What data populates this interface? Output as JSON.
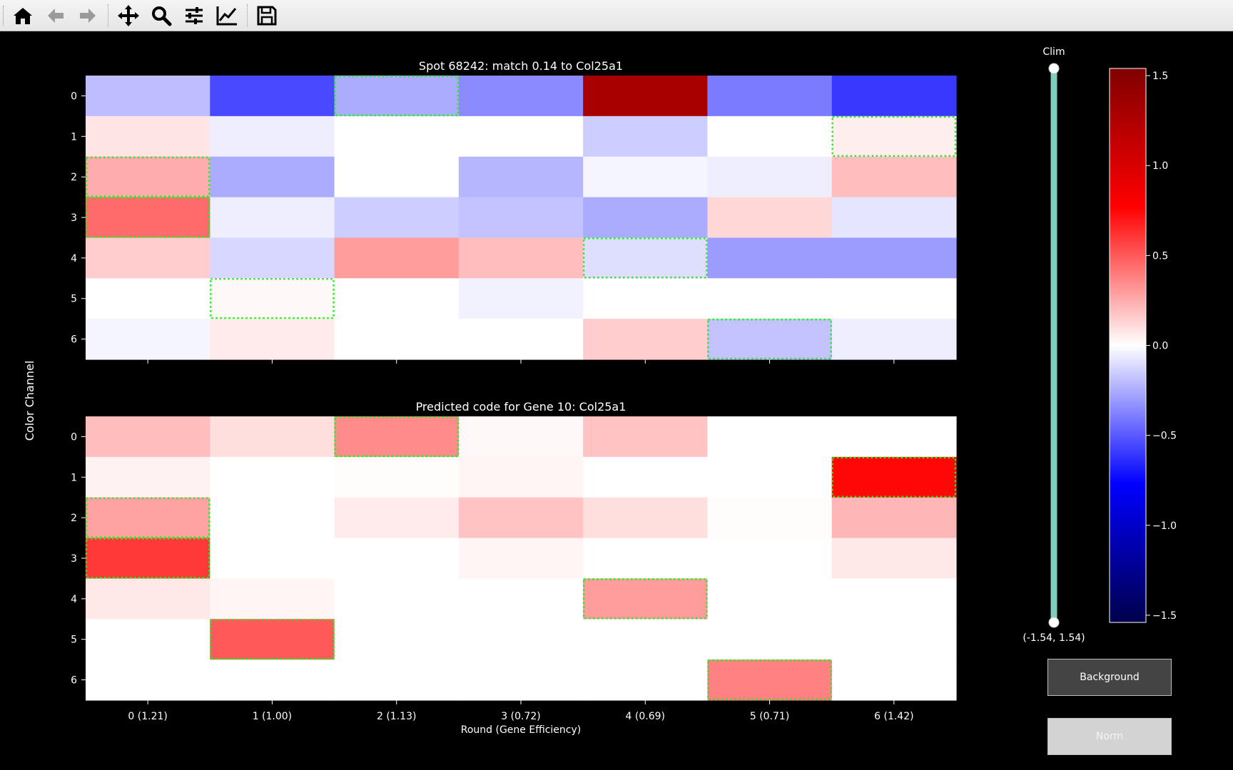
{
  "toolbar": {
    "buttons": [
      {
        "name": "home-icon",
        "label": "Home"
      },
      {
        "name": "back-icon",
        "label": "Back"
      },
      {
        "name": "forward-icon",
        "label": "Forward"
      },
      {
        "name": "pan-icon",
        "label": "Pan"
      },
      {
        "name": "zoom-icon",
        "label": "Zoom"
      },
      {
        "name": "configure-subplots-icon",
        "label": "Configure subplots"
      },
      {
        "name": "edit-axis-icon",
        "label": "Edit axis"
      },
      {
        "name": "save-icon",
        "label": "Save"
      }
    ]
  },
  "chart_data": [
    {
      "type": "heatmap",
      "title": "Spot 68242: match 0.14 to Col25a1",
      "ylabel": "Color Channel",
      "y_categories": [
        "0",
        "1",
        "2",
        "3",
        "4",
        "5",
        "6"
      ],
      "x_categories": [
        "0 (1.21)",
        "1 (1.00)",
        "2 (1.13)",
        "3 (0.72)",
        "4 (0.69)",
        "5 (0.71)",
        "6 (1.42)"
      ],
      "colormap": "seismic",
      "values": [
        [
          -0.2,
          -0.55,
          -0.25,
          -0.35,
          1.3,
          -0.4,
          -0.6
        ],
        [
          0.08,
          -0.05,
          0.0,
          0.0,
          -0.15,
          0.0,
          0.05
        ],
        [
          0.25,
          -0.25,
          0.0,
          -0.22,
          -0.03,
          -0.05,
          0.2
        ],
        [
          0.45,
          -0.05,
          -0.15,
          -0.18,
          -0.25,
          0.12,
          -0.08
        ],
        [
          0.15,
          -0.12,
          0.3,
          0.2,
          -0.1,
          -0.3,
          -0.3
        ],
        [
          0.0,
          0.02,
          0.0,
          -0.04,
          0.0,
          0.0,
          0.0
        ],
        [
          -0.03,
          0.06,
          0.0,
          0.0,
          0.15,
          -0.18,
          -0.05
        ]
      ],
      "highlighted_cells": [
        [
          0,
          2
        ],
        [
          1,
          6
        ],
        [
          2,
          0
        ],
        [
          3,
          0
        ],
        [
          4,
          4
        ],
        [
          5,
          1
        ],
        [
          6,
          5
        ]
      ]
    },
    {
      "type": "heatmap",
      "title": "Predicted code for Gene 10: Col25a1",
      "ylabel": "Color Channel",
      "xlabel": "Round (Gene Efficiency)",
      "y_categories": [
        "0",
        "1",
        "2",
        "3",
        "4",
        "5",
        "6"
      ],
      "x_categories": [
        "0 (1.21)",
        "1 (1.00)",
        "2 (1.13)",
        "3 (0.72)",
        "4 (0.69)",
        "5 (0.71)",
        "6 (1.42)"
      ],
      "colormap": "seismic",
      "values": [
        [
          0.2,
          0.1,
          0.35,
          0.02,
          0.18,
          0.0,
          0.0
        ],
        [
          0.04,
          0.0,
          0.01,
          0.03,
          0.0,
          0.0,
          0.75
        ],
        [
          0.28,
          0.0,
          0.06,
          0.18,
          0.1,
          0.01,
          0.22
        ],
        [
          0.6,
          0.0,
          0.0,
          0.03,
          0.0,
          0.0,
          0.07
        ],
        [
          0.07,
          0.03,
          0.0,
          0.0,
          0.3,
          0.0,
          0.0
        ],
        [
          0.0,
          0.5,
          0.0,
          0.0,
          0.0,
          0.0,
          0.0
        ],
        [
          0.0,
          0.0,
          0.0,
          0.0,
          0.0,
          0.38,
          0.0
        ]
      ],
      "highlighted_cells": [
        [
          0,
          2
        ],
        [
          1,
          6
        ],
        [
          2,
          0
        ],
        [
          3,
          0
        ],
        [
          4,
          4
        ],
        [
          5,
          1
        ],
        [
          6,
          5
        ]
      ]
    }
  ],
  "colorbar": {
    "range": [
      -1.54,
      1.54
    ],
    "ticks": [
      "1.5",
      "1.0",
      "0.5",
      "0.0",
      "−0.5",
      "−1.0",
      "−1.5"
    ],
    "tick_values": [
      1.5,
      1.0,
      0.5,
      0.0,
      -0.5,
      -1.0,
      -1.5
    ]
  },
  "slider": {
    "label": "Clim",
    "value_text": "(-1.54, 1.54)",
    "range": [
      -1.54,
      1.54
    ],
    "color": "#7fcdbb"
  },
  "buttons": {
    "background": "Background",
    "norm": "Norm"
  },
  "highlight_color": "#22ee22"
}
